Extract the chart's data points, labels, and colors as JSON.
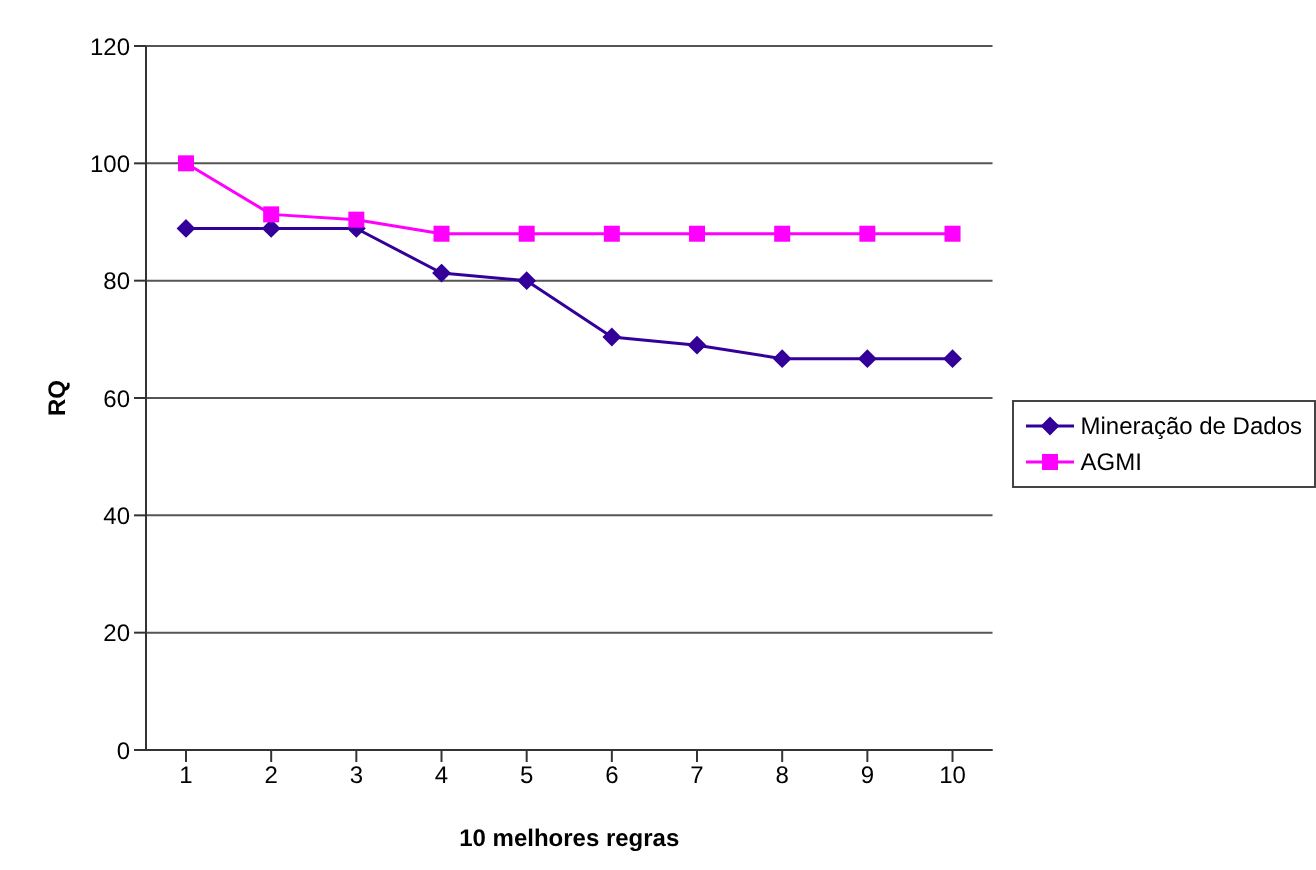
{
  "chart_data": {
    "type": "line",
    "xlabel": "10 melhores regras",
    "ylabel": "RQ",
    "categories": [
      "1",
      "2",
      "3",
      "4",
      "5",
      "6",
      "7",
      "8",
      "9",
      "10"
    ],
    "series": [
      {
        "name": "Mineração de Dados",
        "color": "#330099",
        "marker": "diamond",
        "values": [
          88.9,
          88.9,
          88.9,
          81.3,
          80,
          70.4,
          69,
          66.7,
          66.7,
          66.7
        ]
      },
      {
        "name": "AGMI",
        "color": "#ff00ff",
        "marker": "square",
        "values": [
          100,
          91.3,
          90.4,
          88,
          88,
          88,
          88,
          88,
          88,
          88
        ]
      }
    ],
    "ylim": [
      0,
      120
    ],
    "yticks": [
      0,
      20,
      40,
      60,
      80,
      100,
      120
    ],
    "grid": "y",
    "legend": "right"
  }
}
